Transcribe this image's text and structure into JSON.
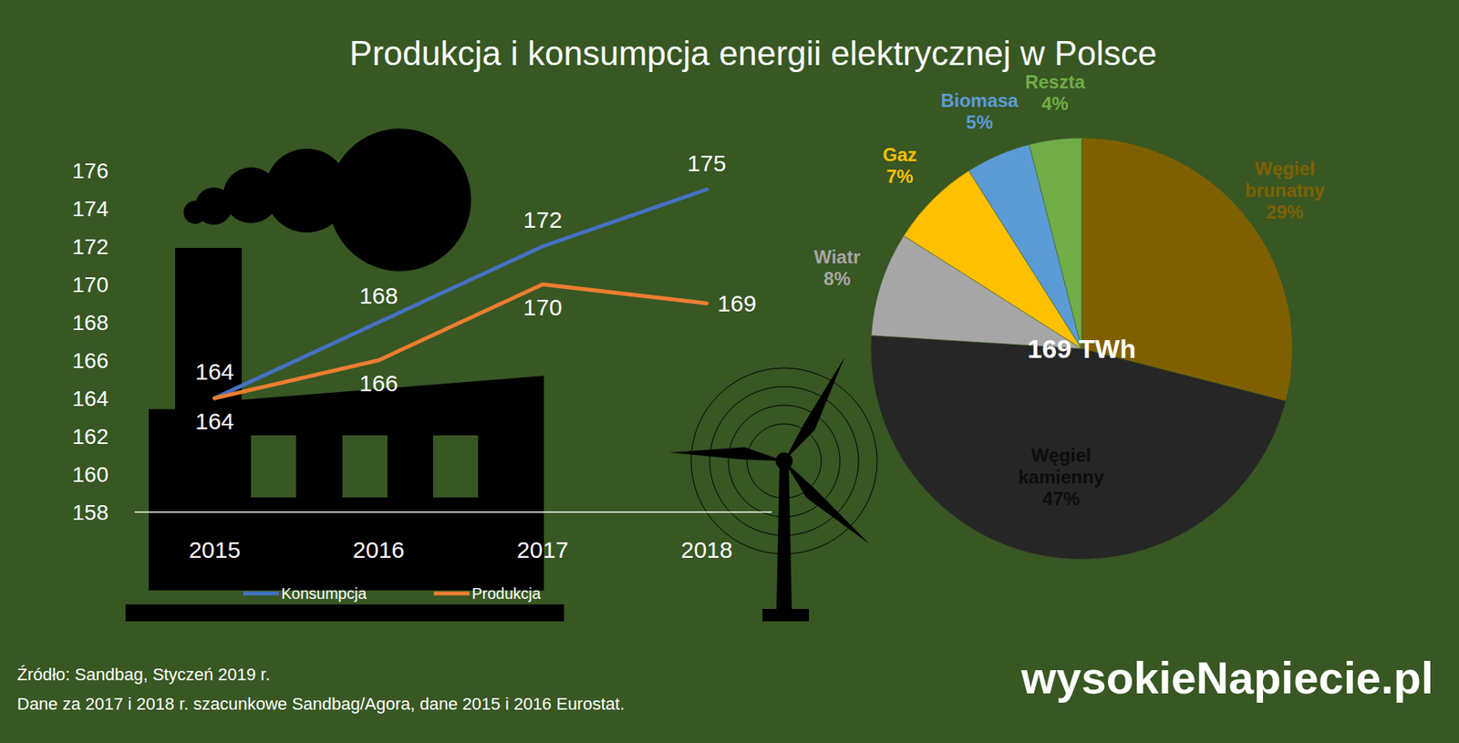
{
  "title": "Produkcja i konsumpcja energii elektrycznej w Polsce",
  "chart_data": [
    {
      "type": "line",
      "categories": [
        "2015",
        "2016",
        "2017",
        "2018"
      ],
      "series": [
        {
          "name": "Konsumpcja",
          "color": "#4472c4",
          "values": [
            164,
            168,
            172,
            175
          ]
        },
        {
          "name": "Produkcja",
          "color": "#ed7d31",
          "values": [
            164,
            166,
            170,
            169
          ]
        }
      ],
      "ylim": [
        158,
        176
      ],
      "yticks": [
        158,
        160,
        162,
        164,
        166,
        168,
        170,
        172,
        174,
        176
      ],
      "grid": false,
      "legend": "bottom",
      "data_labels": true
    },
    {
      "type": "pie",
      "categories": [
        "Węgiel brunatny",
        "Węgiel kamienny",
        "Wiatr",
        "Gaz",
        "Biomasa",
        "Reszta"
      ],
      "values": [
        29,
        47,
        8,
        7,
        5,
        4
      ],
      "value_labels": [
        "29%",
        "47%",
        "8%",
        "7%",
        "5%",
        "4%"
      ],
      "colors": [
        "#7f6000",
        "#262626",
        "#a6a6a6",
        "#ffc000",
        "#5b9bd5",
        "#70ad47"
      ],
      "annotations": [
        "169 TWh"
      ],
      "data_labels": true
    }
  ],
  "source": [
    "Źródło: Sandbag, Styczeń 2019 r.",
    "Dane za 2017 i 2018 r. szacunkowe Sandbag/Agora, dane 2015 i 2016 Eurostat."
  ],
  "logo": "wysokieNapiecie.pl"
}
